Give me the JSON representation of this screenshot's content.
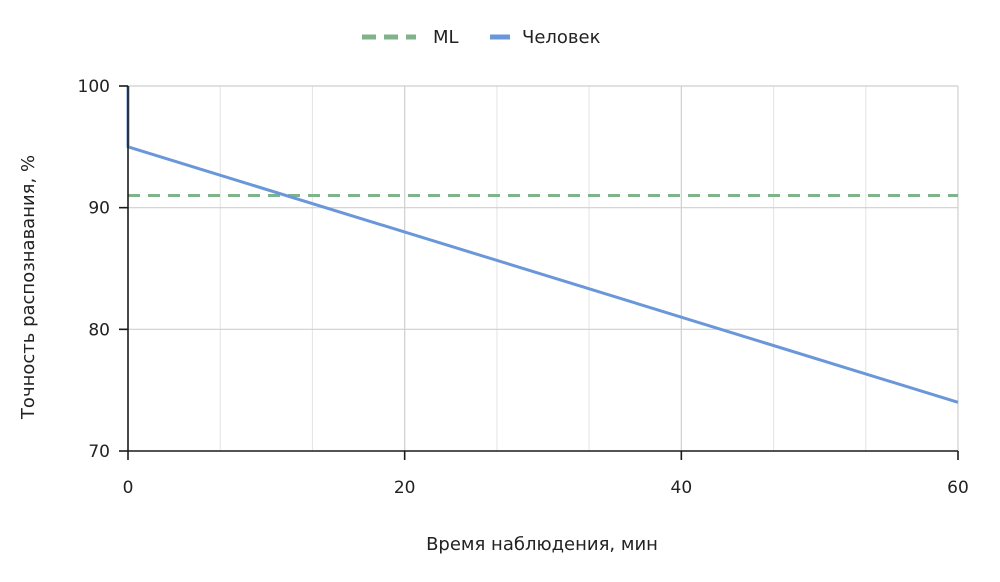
{
  "chart_data": {
    "type": "line",
    "xlabel": "Время наблюдения, мин",
    "ylabel": "Точность распознавания, %",
    "xlim": [
      0,
      60
    ],
    "ylim": [
      70,
      100
    ],
    "x_ticks": [
      0,
      20,
      40,
      60
    ],
    "y_ticks": [
      70,
      80,
      90,
      100
    ],
    "x_minor_grid": [
      6.67,
      13.33,
      26.67,
      33.33,
      46.67,
      53.33
    ],
    "grid": true,
    "legend_position": "top-center",
    "series": [
      {
        "name": "ML",
        "style": "dashed",
        "color": "#7fb38a",
        "x": [
          0,
          60
        ],
        "y": [
          91,
          91
        ]
      },
      {
        "name": "Человек",
        "style": "solid",
        "color": "#6a97d9",
        "x": [
          0,
          0,
          60
        ],
        "y": [
          100,
          95,
          74
        ]
      }
    ]
  }
}
